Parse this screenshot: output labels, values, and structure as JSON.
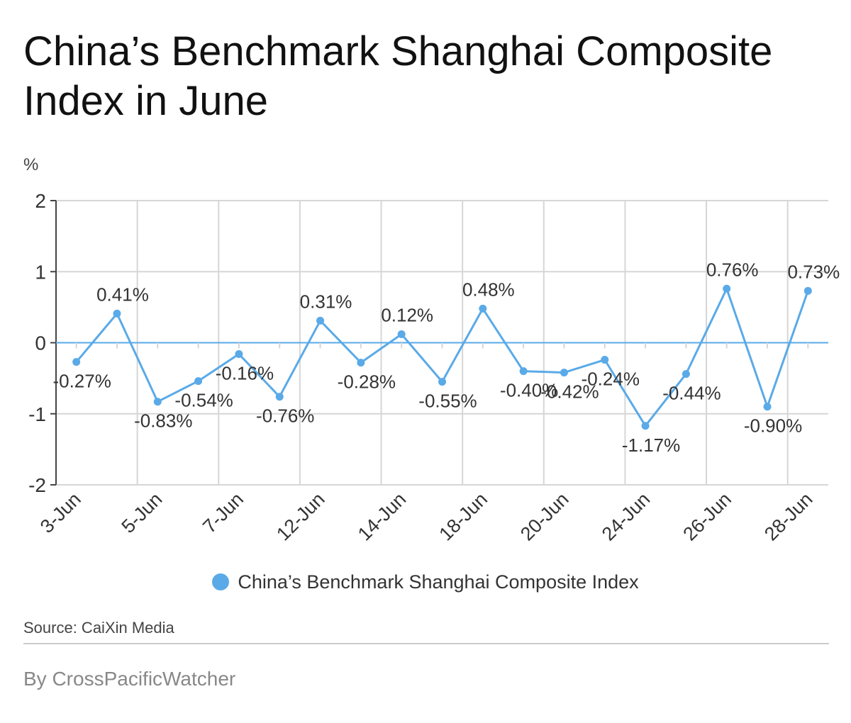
{
  "title": "China’s Benchmark Shanghai Composite Index in June",
  "source": "Source: CaiXin Media",
  "byline": "By CrossPacificWatcher",
  "colors": {
    "series": "#5aaae8",
    "grid": "#d6d6d6",
    "axis": "#444444",
    "label": "#333333"
  },
  "chart_data": {
    "type": "line",
    "ylabel": "%",
    "ylim": [
      -2,
      2
    ],
    "yticks": [
      2,
      1,
      0,
      -1,
      -2
    ],
    "x_tick_labels": [
      "3-Jun",
      "5-Jun",
      "7-Jun",
      "12-Jun",
      "14-Jun",
      "18-Jun",
      "20-Jun",
      "24-Jun",
      "26-Jun",
      "28-Jun"
    ],
    "grid": true,
    "legend": "bottom-center",
    "series": [
      {
        "name": "China’s Benchmark Shanghai Composite Index",
        "x": [
          "3-Jun",
          "4-Jun",
          "5-Jun",
          "6-Jun",
          "7-Jun",
          "11-Jun",
          "12-Jun",
          "13-Jun",
          "14-Jun",
          "17-Jun",
          "18-Jun",
          "19-Jun",
          "20-Jun",
          "21-Jun",
          "24-Jun",
          "25-Jun",
          "26-Jun",
          "27-Jun",
          "28-Jun"
        ],
        "values": [
          -0.27,
          0.41,
          -0.83,
          -0.54,
          -0.16,
          -0.76,
          0.31,
          -0.28,
          0.12,
          -0.55,
          0.48,
          -0.4,
          -0.42,
          -0.24,
          -1.17,
          -0.44,
          0.76,
          -0.9,
          0.73
        ],
        "labels": [
          "-0.27%",
          "0.41%",
          "-0.83%",
          "-0.54%",
          "-0.16%",
          "-0.76%",
          "0.31%",
          "-0.28%",
          "0.12%",
          "-0.55%",
          "0.48%",
          "-0.40%",
          "-0.42%",
          "-0.24%",
          "-1.17%",
          "-0.44%",
          "0.76%",
          "-0.90%",
          "0.73%"
        ]
      }
    ]
  }
}
